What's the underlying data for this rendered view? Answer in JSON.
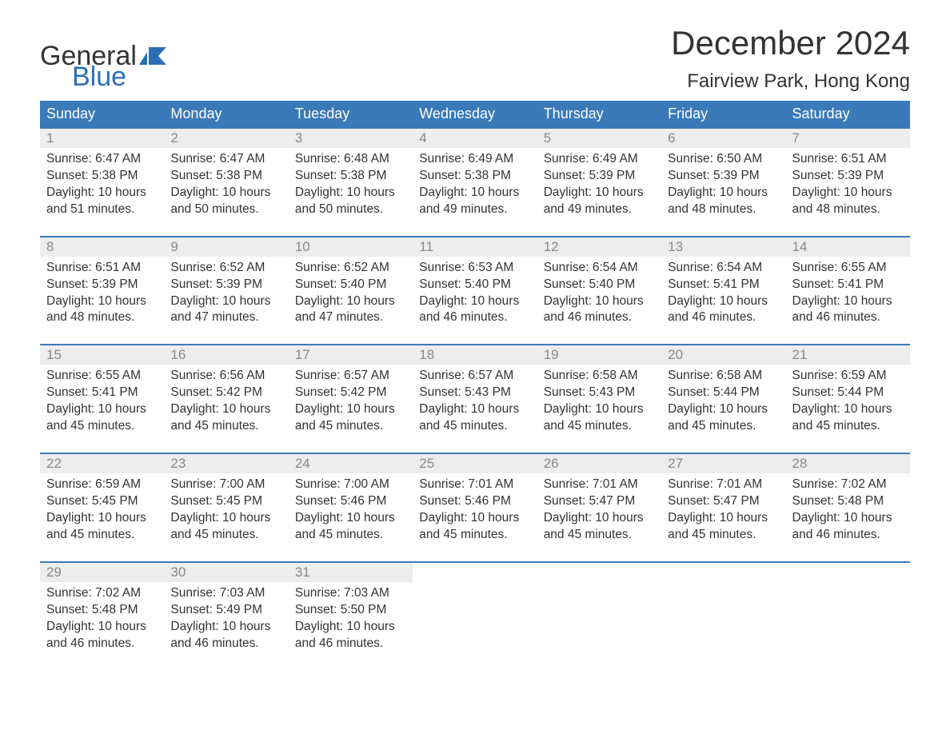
{
  "brand": {
    "word1": "General",
    "word2": "Blue",
    "color_text": "#333333",
    "color_blue": "#2d6fb5"
  },
  "title": "December 2024",
  "location": "Fairview Park, Hong Kong",
  "colors": {
    "header_bg": "#3a7ab8",
    "header_text": "#ffffff",
    "daynum_bg": "#ededed",
    "daynum_text": "#888888",
    "row_border": "#3a7ab8",
    "body_text": "#333333",
    "page_bg": "#ffffff"
  },
  "type": "calendar-table",
  "columns": [
    "Sunday",
    "Monday",
    "Tuesday",
    "Wednesday",
    "Thursday",
    "Friday",
    "Saturday"
  ],
  "weeks": [
    [
      {
        "n": "1",
        "sr": "6:47 AM",
        "ss": "5:38 PM",
        "dl": "10 hours and 51 minutes."
      },
      {
        "n": "2",
        "sr": "6:47 AM",
        "ss": "5:38 PM",
        "dl": "10 hours and 50 minutes."
      },
      {
        "n": "3",
        "sr": "6:48 AM",
        "ss": "5:38 PM",
        "dl": "10 hours and 50 minutes."
      },
      {
        "n": "4",
        "sr": "6:49 AM",
        "ss": "5:38 PM",
        "dl": "10 hours and 49 minutes."
      },
      {
        "n": "5",
        "sr": "6:49 AM",
        "ss": "5:39 PM",
        "dl": "10 hours and 49 minutes."
      },
      {
        "n": "6",
        "sr": "6:50 AM",
        "ss": "5:39 PM",
        "dl": "10 hours and 48 minutes."
      },
      {
        "n": "7",
        "sr": "6:51 AM",
        "ss": "5:39 PM",
        "dl": "10 hours and 48 minutes."
      }
    ],
    [
      {
        "n": "8",
        "sr": "6:51 AM",
        "ss": "5:39 PM",
        "dl": "10 hours and 48 minutes."
      },
      {
        "n": "9",
        "sr": "6:52 AM",
        "ss": "5:39 PM",
        "dl": "10 hours and 47 minutes."
      },
      {
        "n": "10",
        "sr": "6:52 AM",
        "ss": "5:40 PM",
        "dl": "10 hours and 47 minutes."
      },
      {
        "n": "11",
        "sr": "6:53 AM",
        "ss": "5:40 PM",
        "dl": "10 hours and 46 minutes."
      },
      {
        "n": "12",
        "sr": "6:54 AM",
        "ss": "5:40 PM",
        "dl": "10 hours and 46 minutes."
      },
      {
        "n": "13",
        "sr": "6:54 AM",
        "ss": "5:41 PM",
        "dl": "10 hours and 46 minutes."
      },
      {
        "n": "14",
        "sr": "6:55 AM",
        "ss": "5:41 PM",
        "dl": "10 hours and 46 minutes."
      }
    ],
    [
      {
        "n": "15",
        "sr": "6:55 AM",
        "ss": "5:41 PM",
        "dl": "10 hours and 45 minutes."
      },
      {
        "n": "16",
        "sr": "6:56 AM",
        "ss": "5:42 PM",
        "dl": "10 hours and 45 minutes."
      },
      {
        "n": "17",
        "sr": "6:57 AM",
        "ss": "5:42 PM",
        "dl": "10 hours and 45 minutes."
      },
      {
        "n": "18",
        "sr": "6:57 AM",
        "ss": "5:43 PM",
        "dl": "10 hours and 45 minutes."
      },
      {
        "n": "19",
        "sr": "6:58 AM",
        "ss": "5:43 PM",
        "dl": "10 hours and 45 minutes."
      },
      {
        "n": "20",
        "sr": "6:58 AM",
        "ss": "5:44 PM",
        "dl": "10 hours and 45 minutes."
      },
      {
        "n": "21",
        "sr": "6:59 AM",
        "ss": "5:44 PM",
        "dl": "10 hours and 45 minutes."
      }
    ],
    [
      {
        "n": "22",
        "sr": "6:59 AM",
        "ss": "5:45 PM",
        "dl": "10 hours and 45 minutes."
      },
      {
        "n": "23",
        "sr": "7:00 AM",
        "ss": "5:45 PM",
        "dl": "10 hours and 45 minutes."
      },
      {
        "n": "24",
        "sr": "7:00 AM",
        "ss": "5:46 PM",
        "dl": "10 hours and 45 minutes."
      },
      {
        "n": "25",
        "sr": "7:01 AM",
        "ss": "5:46 PM",
        "dl": "10 hours and 45 minutes."
      },
      {
        "n": "26",
        "sr": "7:01 AM",
        "ss": "5:47 PM",
        "dl": "10 hours and 45 minutes."
      },
      {
        "n": "27",
        "sr": "7:01 AM",
        "ss": "5:47 PM",
        "dl": "10 hours and 45 minutes."
      },
      {
        "n": "28",
        "sr": "7:02 AM",
        "ss": "5:48 PM",
        "dl": "10 hours and 46 minutes."
      }
    ],
    [
      {
        "n": "29",
        "sr": "7:02 AM",
        "ss": "5:48 PM",
        "dl": "10 hours and 46 minutes."
      },
      {
        "n": "30",
        "sr": "7:03 AM",
        "ss": "5:49 PM",
        "dl": "10 hours and 46 minutes."
      },
      {
        "n": "31",
        "sr": "7:03 AM",
        "ss": "5:50 PM",
        "dl": "10 hours and 46 minutes."
      },
      null,
      null,
      null,
      null
    ]
  ],
  "labels": {
    "sunrise": "Sunrise: ",
    "sunset": "Sunset: ",
    "daylight": "Daylight: "
  }
}
